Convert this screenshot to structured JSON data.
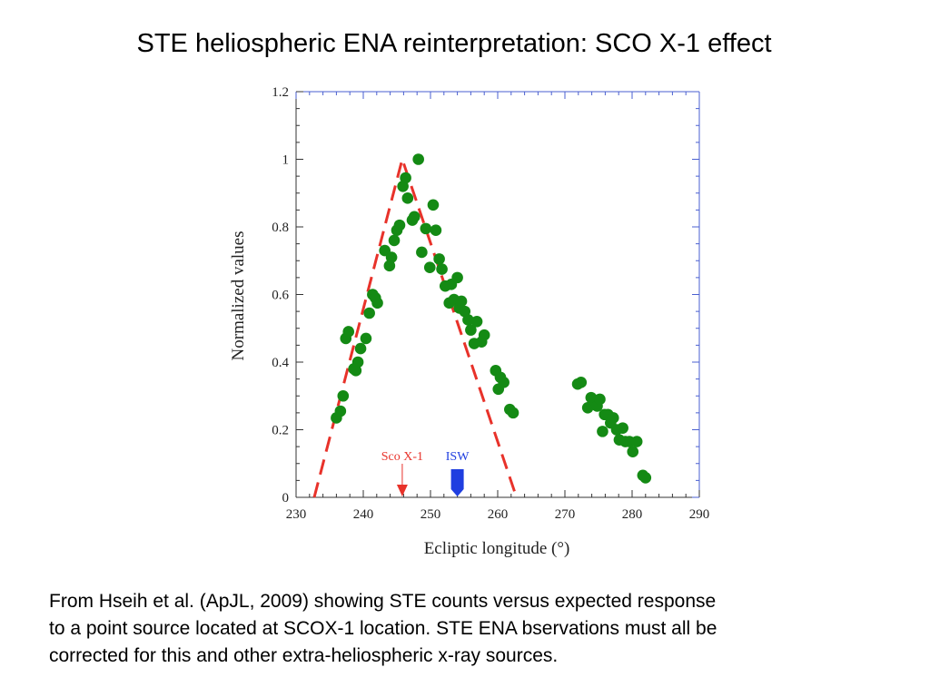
{
  "slide": {
    "title": "STE heliospheric ENA reinterpretation: SCO X-1 effect",
    "caption_lines": [
      "From Hseih et al. (ApJL, 2009) showing STE counts versus expected response",
      "to a point source located at SCOX-1 location.  STE ENA bservations must all be",
      "corrected for this and other extra-heliospheric x-ray sources."
    ]
  },
  "chart_data": {
    "type": "scatter",
    "xlabel": "Ecliptic longitude (°)",
    "ylabel": "Normalized values",
    "xlim": [
      230,
      290
    ],
    "ylim": [
      0,
      1.2
    ],
    "x_ticks": [
      230,
      240,
      250,
      260,
      270,
      280,
      290
    ],
    "y_ticks": [
      0,
      0.2,
      0.4,
      0.6,
      0.8,
      1,
      1.2
    ],
    "y_tick_labels": [
      "0",
      "0.2",
      "0.4",
      "0.6",
      "0.8",
      "1",
      "1.2"
    ],
    "grid": false,
    "series": [
      {
        "kind": "points",
        "color": "#148a14",
        "points": [
          [
            236.0,
            0.235
          ],
          [
            236.6,
            0.255
          ],
          [
            237.0,
            0.3
          ],
          [
            237.4,
            0.47
          ],
          [
            237.8,
            0.49
          ],
          [
            238.6,
            0.38
          ],
          [
            238.9,
            0.375
          ],
          [
            239.2,
            0.4
          ],
          [
            239.6,
            0.44
          ],
          [
            240.4,
            0.47
          ],
          [
            240.9,
            0.545
          ],
          [
            241.4,
            0.6
          ],
          [
            241.8,
            0.59
          ],
          [
            242.1,
            0.575
          ],
          [
            243.2,
            0.73
          ],
          [
            243.9,
            0.685
          ],
          [
            244.2,
            0.71
          ],
          [
            244.6,
            0.76
          ],
          [
            245.0,
            0.79
          ],
          [
            245.4,
            0.805
          ],
          [
            245.9,
            0.92
          ],
          [
            246.3,
            0.945
          ],
          [
            246.6,
            0.885
          ],
          [
            247.3,
            0.82
          ],
          [
            247.6,
            0.83
          ],
          [
            248.2,
            1.0
          ],
          [
            248.7,
            0.725
          ],
          [
            249.3,
            0.795
          ],
          [
            249.9,
            0.68
          ],
          [
            250.4,
            0.865
          ],
          [
            250.8,
            0.79
          ],
          [
            251.3,
            0.705
          ],
          [
            251.7,
            0.675
          ],
          [
            252.2,
            0.625
          ],
          [
            252.8,
            0.575
          ],
          [
            253.1,
            0.63
          ],
          [
            253.5,
            0.585
          ],
          [
            254.0,
            0.65
          ],
          [
            254.3,
            0.56
          ],
          [
            254.6,
            0.58
          ],
          [
            255.1,
            0.55
          ],
          [
            255.6,
            0.525
          ],
          [
            256.0,
            0.495
          ],
          [
            256.5,
            0.455
          ],
          [
            256.9,
            0.52
          ],
          [
            257.6,
            0.46
          ],
          [
            258.0,
            0.48
          ],
          [
            259.7,
            0.375
          ],
          [
            260.1,
            0.32
          ],
          [
            260.4,
            0.355
          ],
          [
            260.9,
            0.34
          ],
          [
            261.8,
            0.26
          ],
          [
            262.3,
            0.25
          ],
          [
            271.9,
            0.335
          ],
          [
            272.4,
            0.34
          ],
          [
            273.4,
            0.265
          ],
          [
            273.9,
            0.295
          ],
          [
            274.4,
            0.285
          ],
          [
            274.8,
            0.27
          ],
          [
            275.2,
            0.29
          ],
          [
            275.6,
            0.195
          ],
          [
            275.9,
            0.245
          ],
          [
            276.4,
            0.245
          ],
          [
            276.8,
            0.22
          ],
          [
            277.2,
            0.235
          ],
          [
            277.7,
            0.2
          ],
          [
            278.1,
            0.17
          ],
          [
            278.6,
            0.205
          ],
          [
            279.0,
            0.165
          ],
          [
            279.6,
            0.165
          ],
          [
            280.1,
            0.135
          ],
          [
            280.7,
            0.165
          ],
          [
            281.6,
            0.065
          ],
          [
            282.0,
            0.058
          ]
        ]
      },
      {
        "kind": "dashed-line",
        "color": "#e8322a",
        "points": [
          [
            232.7,
            0
          ],
          [
            245.8,
            1.0
          ],
          [
            262.8,
            0
          ]
        ]
      }
    ],
    "annotations": [
      {
        "text": "Sco X-1",
        "x": 245.8,
        "color": "#e8322a",
        "marker": "arrow"
      },
      {
        "text": "ISW",
        "x": 254.0,
        "color": "#1f3ee0",
        "marker": "block-arrow"
      }
    ]
  }
}
